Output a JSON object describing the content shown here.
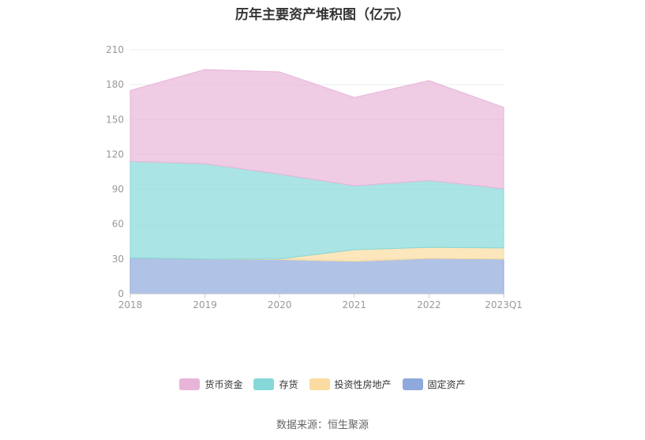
{
  "chart_data": {
    "type": "area",
    "stacked": true,
    "title": "历年主要资产堆积图（亿元）",
    "categories": [
      "2018",
      "2019",
      "2020",
      "2021",
      "2022",
      "2023Q1"
    ],
    "ylim": [
      0,
      210
    ],
    "yticks": [
      0,
      30,
      60,
      90,
      120,
      150,
      180,
      210
    ],
    "grid": true,
    "legend_position": "bottom",
    "series": [
      {
        "name": "固定资产",
        "color": "#8fa9dc",
        "values": [
          31,
          30,
          29.5,
          28,
          30.5,
          30
        ]
      },
      {
        "name": "投资性房地产",
        "color": "#fbdba0",
        "values": [
          0,
          0,
          0.5,
          10,
          9.5,
          9.5
        ]
      },
      {
        "name": "存货",
        "color": "#86d8d8",
        "values": [
          83,
          82,
          73,
          55,
          57.5,
          51
        ]
      },
      {
        "name": "货币资金",
        "color": "#e8b5d9",
        "values": [
          61,
          81,
          88,
          76,
          86,
          70
        ]
      }
    ],
    "legend_order": [
      "货币资金",
      "存货",
      "投资性房地产",
      "固定资产"
    ]
  },
  "footer": {
    "source": "数据来源：恒生聚源"
  }
}
